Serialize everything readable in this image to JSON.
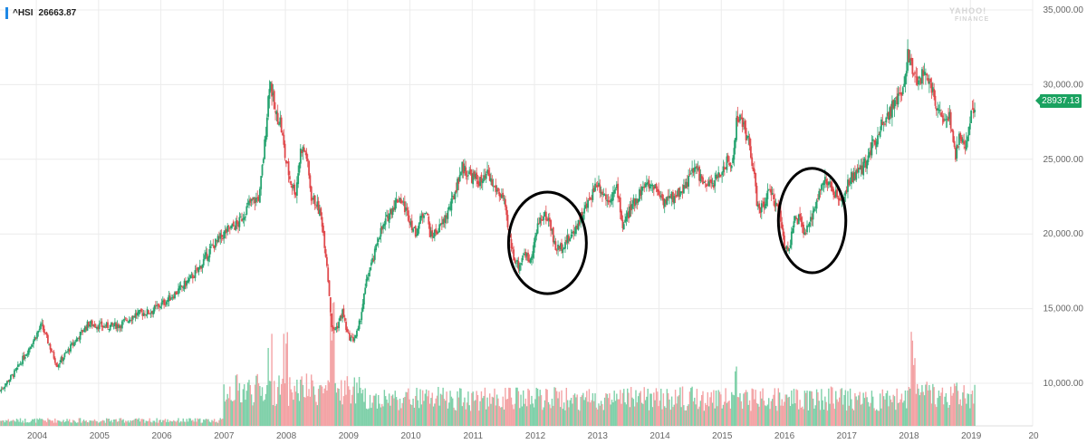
{
  "header": {
    "symbol": "^HSI",
    "value": "26663.87",
    "watermark_top": "YAHOO!",
    "watermark_bottom": "FINANCE"
  },
  "last_price_tag": "28937.13",
  "colors": {
    "up": "#25a36f",
    "down": "#e0494c",
    "up_volume": "#7fd0a9",
    "down_volume": "#f3a3a5",
    "grid": "#ececec",
    "axis_text": "#666666",
    "annotation": "#000000",
    "price_tag": "#1aa260",
    "ticker_bar": "#1e88e5"
  },
  "chart_data": {
    "type": "candlestick",
    "title": "",
    "xlabel": "",
    "ylabel": "",
    "x_ticks": [
      "2004",
      "2005",
      "2006",
      "2007",
      "2008",
      "2009",
      "2010",
      "2011",
      "2012",
      "2013",
      "2014",
      "2015",
      "2016",
      "2017",
      "2018",
      "2019",
      "20"
    ],
    "xlim": [
      "2003-06",
      "2020-01"
    ],
    "y_ticks": [
      "10,000.00",
      "15,000.00",
      "20,000.00",
      "25,000.00",
      "30,000.00",
      "35,000.00"
    ],
    "y_tick_values": [
      10000,
      15000,
      20000,
      25000,
      30000,
      35000
    ],
    "ylim": [
      7500,
      35000
    ],
    "grid": true,
    "axis_position": "right",
    "series": [
      {
        "values_kind": "approximate weekly close level",
        "points": [
          [
            "2003-06",
            9500
          ],
          [
            "2003-09",
            10800
          ],
          [
            "2003-12",
            12600
          ],
          [
            "2004-02",
            13900
          ],
          [
            "2004-05",
            11200
          ],
          [
            "2004-08",
            12600
          ],
          [
            "2004-11",
            14000
          ],
          [
            "2005-02",
            13800
          ],
          [
            "2005-05",
            13900
          ],
          [
            "2005-08",
            14600
          ],
          [
            "2005-11",
            14800
          ],
          [
            "2006-02",
            15500
          ],
          [
            "2006-05",
            16400
          ],
          [
            "2006-08",
            17500
          ],
          [
            "2006-11",
            19200
          ],
          [
            "2007-02",
            20300
          ],
          [
            "2007-04",
            20700
          ],
          [
            "2007-06",
            22000
          ],
          [
            "2007-08",
            22500
          ],
          [
            "2007-09",
            26000
          ],
          [
            "2007-10",
            30500
          ],
          [
            "2007-11",
            28000
          ],
          [
            "2007-12",
            27600
          ],
          [
            "2008-01",
            25000
          ],
          [
            "2008-02",
            23500
          ],
          [
            "2008-03",
            22800
          ],
          [
            "2008-04",
            25800
          ],
          [
            "2008-05",
            25400
          ],
          [
            "2008-06",
            22500
          ],
          [
            "2008-07",
            22000
          ],
          [
            "2008-08",
            21000
          ],
          [
            "2008-09",
            18000
          ],
          [
            "2008-10",
            13500
          ],
          [
            "2008-11",
            13800
          ],
          [
            "2008-12",
            14800
          ],
          [
            "2009-01",
            13200
          ],
          [
            "2009-02",
            12900
          ],
          [
            "2009-03",
            13500
          ],
          [
            "2009-04",
            15500
          ],
          [
            "2009-05",
            17500
          ],
          [
            "2009-06",
            18300
          ],
          [
            "2009-07",
            20000
          ],
          [
            "2009-08",
            20500
          ],
          [
            "2009-09",
            21400
          ],
          [
            "2009-10",
            22000
          ],
          [
            "2009-11",
            22500
          ],
          [
            "2010-01",
            21000
          ],
          [
            "2010-02",
            20000
          ],
          [
            "2010-04",
            21800
          ],
          [
            "2010-05",
            19800
          ],
          [
            "2010-07",
            20500
          ],
          [
            "2010-09",
            22000
          ],
          [
            "2010-11",
            24500
          ],
          [
            "2011-01",
            23800
          ],
          [
            "2011-03",
            23400
          ],
          [
            "2011-04",
            24000
          ],
          [
            "2011-05",
            23200
          ],
          [
            "2011-07",
            22400
          ],
          [
            "2011-08",
            20000
          ],
          [
            "2011-09",
            18500
          ],
          [
            "2011-10",
            17800
          ],
          [
            "2011-11",
            18800
          ],
          [
            "2011-12",
            18200
          ],
          [
            "2012-01",
            19500
          ],
          [
            "2012-02",
            21000
          ],
          [
            "2012-03",
            21200
          ],
          [
            "2012-04",
            20800
          ],
          [
            "2012-05",
            19000
          ],
          [
            "2012-06",
            19100
          ],
          [
            "2012-07",
            19500
          ],
          [
            "2012-08",
            19800
          ],
          [
            "2012-09",
            20500
          ],
          [
            "2012-11",
            21800
          ],
          [
            "2013-01",
            23500
          ],
          [
            "2013-03",
            22300
          ],
          [
            "2013-05",
            23000
          ],
          [
            "2013-06",
            20500
          ],
          [
            "2013-08",
            22000
          ],
          [
            "2013-10",
            23200
          ],
          [
            "2013-12",
            23300
          ],
          [
            "2014-02",
            22200
          ],
          [
            "2014-04",
            22500
          ],
          [
            "2014-06",
            23200
          ],
          [
            "2014-08",
            24500
          ],
          [
            "2014-10",
            23100
          ],
          [
            "2014-12",
            23600
          ],
          [
            "2015-02",
            24800
          ],
          [
            "2015-03",
            24500
          ],
          [
            "2015-04",
            27800
          ],
          [
            "2015-05",
            27500
          ],
          [
            "2015-06",
            26500
          ],
          [
            "2015-07",
            24800
          ],
          [
            "2015-08",
            21700
          ],
          [
            "2015-09",
            21800
          ],
          [
            "2015-10",
            22800
          ],
          [
            "2015-12",
            21800
          ],
          [
            "2016-01",
            19500
          ],
          [
            "2016-02",
            19000
          ],
          [
            "2016-03",
            20800
          ],
          [
            "2016-04",
            21000
          ],
          [
            "2016-05",
            20000
          ],
          [
            "2016-06",
            20500
          ],
          [
            "2016-07",
            22000
          ],
          [
            "2016-08",
            23000
          ],
          [
            "2016-09",
            23600
          ],
          [
            "2016-10",
            23200
          ],
          [
            "2016-11",
            22600
          ],
          [
            "2016-12",
            22000
          ],
          [
            "2017-02",
            23800
          ],
          [
            "2017-04",
            24200
          ],
          [
            "2017-06",
            25800
          ],
          [
            "2017-08",
            27500
          ],
          [
            "2017-10",
            28500
          ],
          [
            "2017-12",
            29500
          ],
          [
            "2018-01",
            32200
          ],
          [
            "2018-02",
            30500
          ],
          [
            "2018-03",
            30400
          ],
          [
            "2018-04",
            30600
          ],
          [
            "2018-05",
            30700
          ],
          [
            "2018-06",
            28900
          ],
          [
            "2018-07",
            28500
          ],
          [
            "2018-08",
            27600
          ],
          [
            "2018-09",
            27700
          ],
          [
            "2018-10",
            25200
          ],
          [
            "2018-11",
            26500
          ],
          [
            "2018-12",
            25800
          ],
          [
            "2019-01",
            27800
          ],
          [
            "2019-02",
            28900
          ]
        ]
      }
    ],
    "volume": {
      "note": "volume bars along bottom, unlabeled",
      "peaks": [
        [
          "2007-10",
          "high"
        ],
        [
          "2008-01",
          "high"
        ],
        [
          "2008-10",
          "very high"
        ],
        [
          "2015-04",
          "high"
        ],
        [
          "2018-02",
          "very high"
        ]
      ]
    },
    "annotations": [
      {
        "shape": "ellipse",
        "around": [
          "2011-08",
          "2012-11"
        ],
        "y_range": [
          16000,
          22800
        ]
      },
      {
        "shape": "ellipse",
        "around": [
          "2015-12",
          "2017-01"
        ],
        "y_range": [
          17400,
          24400
        ]
      }
    ]
  }
}
